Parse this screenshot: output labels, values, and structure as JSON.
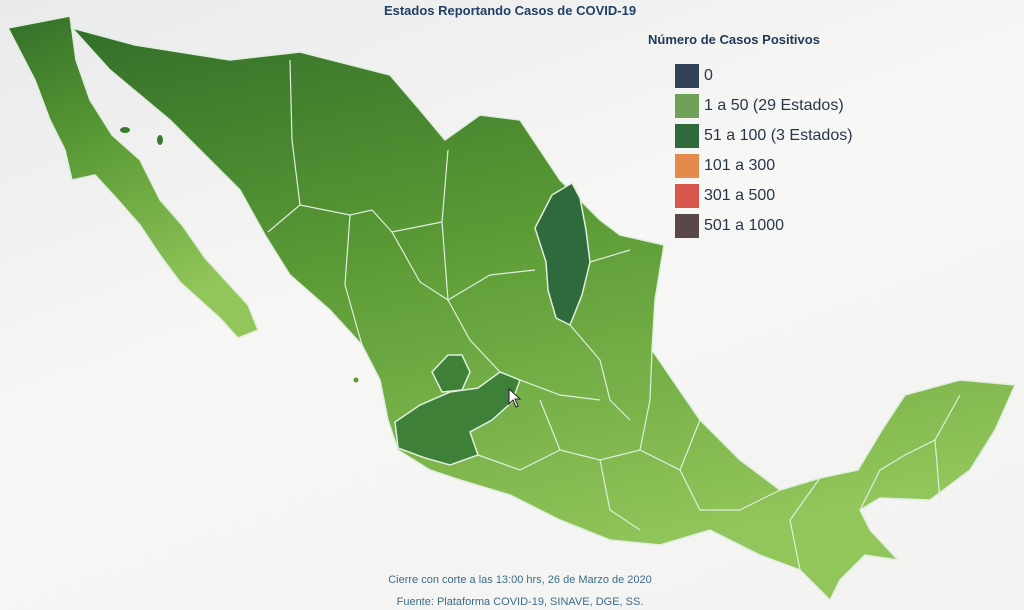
{
  "title": "Estados Reportando Casos de COVID-19",
  "legend": {
    "title": "Número de Casos Positivos",
    "items": [
      {
        "label": "0",
        "color": "#2f4257"
      },
      {
        "label": "1 a 50 (29 Estados)",
        "color": "#6fa15a"
      },
      {
        "label": "51 a 100 (3 Estados)",
        "color": "#2f6a3c"
      },
      {
        "label": "101 a 300",
        "color": "#e48a4c"
      },
      {
        "label": "301 a 500",
        "color": "#d8564b"
      },
      {
        "label": "501 a 1000",
        "color": "#5b4747"
      }
    ]
  },
  "footer": {
    "cutoff": "Cierre con corte a las 13:00 hrs, 26 de Marzo de 2020",
    "source": "Fuente: Plataforma COVID-19, SINAVE, DGE, SS."
  },
  "map_colors": {
    "north": "#3a7a2e",
    "center": "#6aa83c",
    "south": "#8bbf4f",
    "highlight": "#2f6a3c",
    "border": "#dfeede"
  },
  "highlighted_states_count": 3
}
